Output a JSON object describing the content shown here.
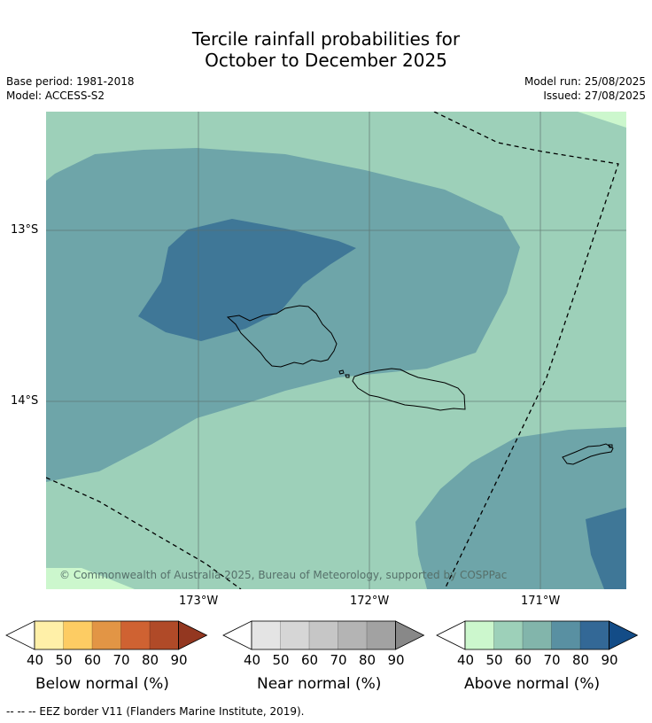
{
  "title": {
    "line1": "Tercile rainfall probabilities for",
    "line2": "October to December 2025"
  },
  "meta": {
    "base_period": "Base period: 1981-2018",
    "model": "Model: ACCESS-S2",
    "model_run": "Model run: 25/08/2025",
    "issued": "Issued: 27/08/2025"
  },
  "map": {
    "lat_labels": [
      "13°S",
      "14°S"
    ],
    "lon_labels": [
      "173°W",
      "172°W",
      "171°W"
    ],
    "copyright": "© Commonwealth of Australia 2025, Bureau of Meteorology, supported by COSPPac",
    "colors": {
      "background": "#9dd0b9",
      "band_70": "#6ea5a9",
      "band_80": "#3f7797",
      "band_50": "#ccf7cd",
      "gridline": "#5a6e6a",
      "coastline": "#000000",
      "eez": "#000000"
    }
  },
  "colorbars": [
    {
      "title": "Below normal (%)",
      "ticks": [
        "40",
        "50",
        "60",
        "70",
        "80",
        "90"
      ],
      "colors": [
        "#fff0a8",
        "#fdcc63",
        "#e29545",
        "#cf6232",
        "#b04a28",
        "#933720"
      ]
    },
    {
      "title": "Near normal (%)",
      "ticks": [
        "40",
        "50",
        "60",
        "70",
        "80",
        "90"
      ],
      "colors": [
        "#e4e4e4",
        "#d6d6d6",
        "#c6c6c6",
        "#b4b4b4",
        "#a2a2a2",
        "#888888"
      ]
    },
    {
      "title": "Above normal (%)",
      "ticks": [
        "40",
        "50",
        "60",
        "70",
        "80",
        "90"
      ],
      "colors": [
        "#ccf7cd",
        "#9dd0b9",
        "#82b5ab",
        "#5990a2",
        "#336896",
        "#134c87"
      ]
    }
  ],
  "footnote": "--  --  -- EEZ border V11 (Flanders Marine Institute, 2019)."
}
